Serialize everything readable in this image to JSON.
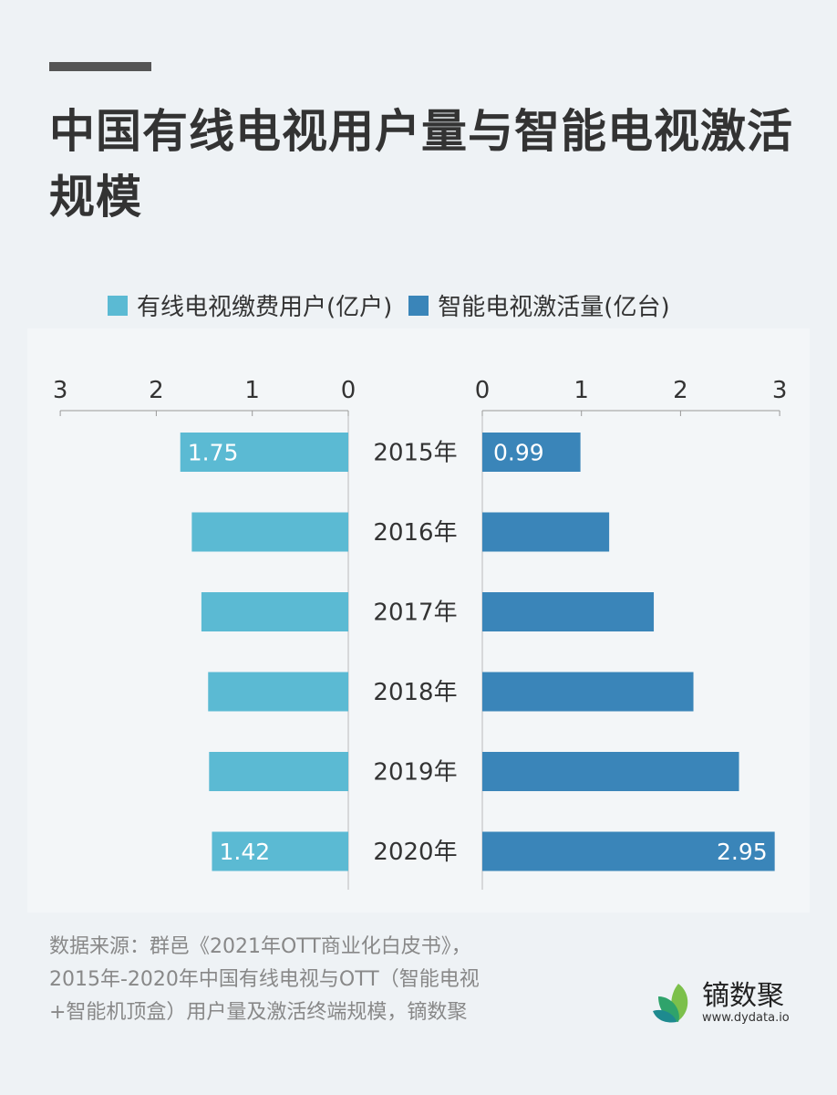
{
  "title": "中国有线电视用户量与智能电视激活规模",
  "chart_data": {
    "type": "bar",
    "orientation": "horizontal-butterfly",
    "categories": [
      "2015年",
      "2016年",
      "2017年",
      "2018年",
      "2019年",
      "2020年"
    ],
    "series": [
      {
        "name": "有线电视缴费用户(亿户)",
        "values": [
          1.75,
          1.63,
          1.53,
          1.46,
          1.45,
          1.42
        ],
        "color": "#5bbad3",
        "side": "left",
        "data_labels": {
          "0": "1.75",
          "5": "1.42"
        }
      },
      {
        "name": "智能电视激活量(亿台)",
        "values": [
          0.99,
          1.28,
          1.73,
          2.13,
          2.59,
          2.95
        ],
        "color": "#3a85b9",
        "side": "right",
        "data_labels": {
          "0": "0.99",
          "5": "2.95"
        }
      }
    ],
    "xlim": [
      0,
      3
    ],
    "ticks": [
      "0",
      "1",
      "2",
      "3"
    ],
    "legend": "top",
    "grid": false
  },
  "source": {
    "line1": "数据来源：群邑《2021年OTT商业化白皮书》，",
    "line2": "2015年-2020年中国有线电视与OTT（智能电视",
    "line3": "+智能机顶盒）用户量及激活终端规模，镝数聚"
  },
  "logo": {
    "name": "镝数聚",
    "url": "www.dydata.io"
  }
}
